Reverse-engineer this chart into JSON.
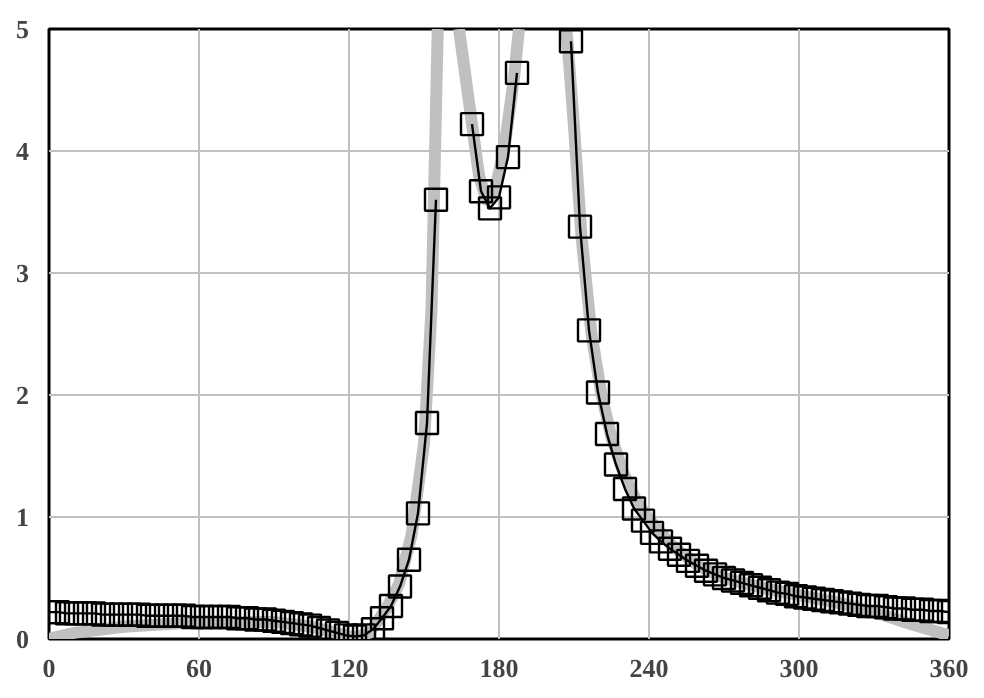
{
  "chart_data": {
    "type": "line",
    "xlim": [
      0,
      360
    ],
    "ylim": [
      0,
      5
    ],
    "xticks": [
      0,
      60,
      120,
      180,
      240,
      300,
      360
    ],
    "yticks": [
      0,
      1,
      2,
      3,
      4,
      5
    ],
    "grid": true,
    "line_style": "solid",
    "series": [
      {
        "color": "#c0c0c0",
        "marker": "none",
        "x": [
          0,
          10,
          30,
          60,
          90,
          105,
          115,
          122,
          128,
          135,
          140,
          145,
          150,
          153,
          155.5,
          160,
          164,
          168,
          172,
          175,
          178,
          182,
          186,
          188,
          198,
          207,
          210,
          213,
          217,
          221,
          225,
          230,
          235,
          240,
          250,
          260,
          270,
          285,
          300,
          315,
          330,
          345,
          360
        ],
        "values": [
          0,
          0.05,
          0.1,
          0.14,
          0.14,
          0.1,
          0.05,
          0.01,
          0.05,
          0.25,
          0.45,
          0.85,
          1.6,
          2.7,
          5,
          null,
          5,
          4.4,
          3.8,
          3.6,
          3.65,
          4.0,
          4.6,
          5,
          null,
          5,
          4.2,
          3.3,
          2.5,
          2.0,
          1.65,
          1.35,
          1.13,
          0.98,
          0.75,
          0.6,
          0.5,
          0.42,
          0.36,
          0.3,
          0.22,
          0.12,
          0.03
        ]
      },
      {
        "color": "#000000",
        "marker": "square",
        "x": [
          0,
          3.6,
          7.2,
          10.8,
          14.4,
          18,
          21.6,
          25.2,
          28.8,
          32.4,
          36,
          39.6,
          43.2,
          46.8,
          50.4,
          54,
          57.6,
          61.2,
          64.8,
          68.4,
          72,
          75.6,
          79.2,
          82.8,
          86.4,
          90,
          93.6,
          97.2,
          100.8,
          104.4,
          108,
          111.6,
          115.2,
          118.8,
          122.4,
          126,
          129.6,
          133.2,
          136.8,
          140.4,
          144,
          147.6,
          151.2,
          154.8,
          158.4,
          162,
          165.6,
          169.2,
          172.8,
          176.4,
          180,
          183.6,
          187.2,
          190.8,
          194.4,
          198,
          201.6,
          205.2,
          208.8,
          212.4,
          216,
          219.6,
          223.2,
          226.8,
          230.4,
          234,
          237.6,
          241.2,
          244.8,
          248.4,
          252,
          255.6,
          259.2,
          262.8,
          266.4,
          270,
          273.6,
          277.2,
          280.8,
          284.4,
          288,
          291.6,
          295.2,
          298.8,
          302.4,
          306,
          309.6,
          313.2,
          316.8,
          320.4,
          324,
          327.6,
          331.2,
          334.8,
          338.4,
          342,
          345.6,
          349.2,
          352.8,
          356.4,
          360
        ],
        "values": [
          0.22,
          0.22,
          0.21,
          0.21,
          0.21,
          0.21,
          0.2,
          0.2,
          0.2,
          0.2,
          0.2,
          0.19,
          0.19,
          0.19,
          0.19,
          0.19,
          0.18,
          0.18,
          0.18,
          0.18,
          0.18,
          0.17,
          0.17,
          0.16,
          0.16,
          0.15,
          0.14,
          0.13,
          0.12,
          0.11,
          0.09,
          0.07,
          0.05,
          0.03,
          0.02,
          0.03,
          0.08,
          0.17,
          0.27,
          0.43,
          0.65,
          1.03,
          1.77,
          3.6,
          null,
          null,
          null,
          4.22,
          3.67,
          3.53,
          3.62,
          3.95,
          4.64,
          null,
          null,
          null,
          null,
          null,
          4.9,
          3.38,
          2.53,
          2.02,
          1.68,
          1.43,
          1.23,
          1.07,
          0.97,
          0.87,
          0.8,
          0.74,
          0.69,
          0.64,
          0.6,
          0.56,
          0.53,
          0.5,
          0.48,
          0.46,
          0.44,
          0.42,
          0.4,
          0.38,
          0.37,
          0.35,
          0.34,
          0.33,
          0.32,
          0.31,
          0.3,
          0.29,
          0.28,
          0.27,
          0.27,
          0.26,
          0.25,
          0.25,
          0.24,
          0.24,
          0.23,
          0.23,
          0.22
        ]
      }
    ]
  }
}
